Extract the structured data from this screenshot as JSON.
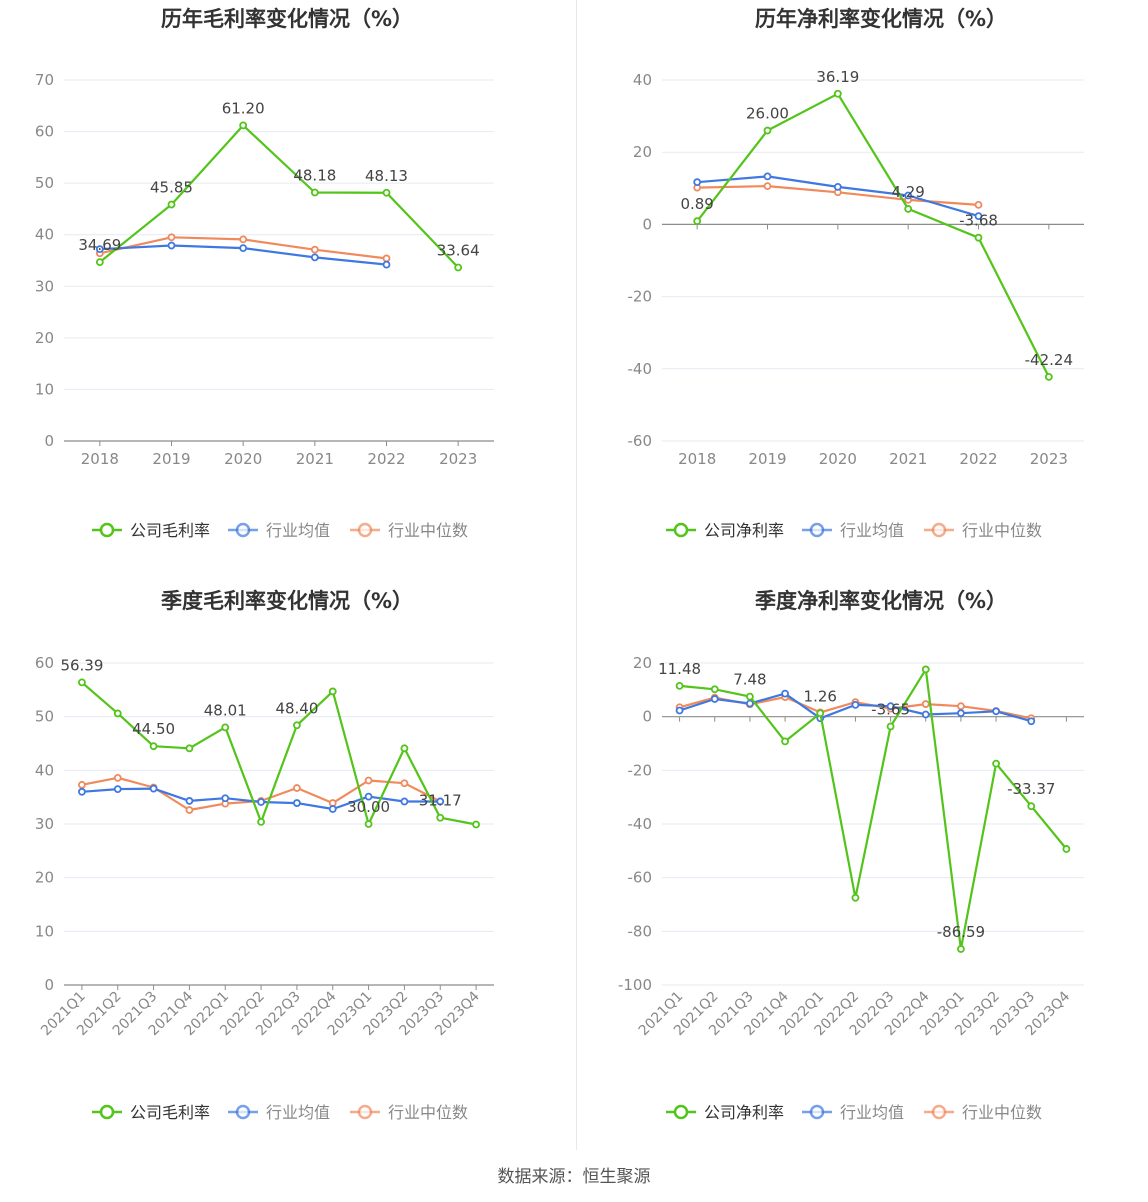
{
  "colors": {
    "company": "#52c41a",
    "industry_avg": "#3e78e0",
    "industry_median": "#f08a5d",
    "grid": "#e6e9f2",
    "axis": "#8c8c8c",
    "tick_text": "#888888",
    "label_text": "#444444",
    "title_text": "#333333"
  },
  "source": "数据来源：恒生聚源",
  "chart_data": [
    {
      "type": "line",
      "title": "历年毛利率变化情况（%）",
      "categories": [
        "2018",
        "2019",
        "2020",
        "2021",
        "2022",
        "2023"
      ],
      "ylim": [
        0,
        70
      ],
      "yticks": [
        0,
        10,
        20,
        30,
        40,
        50,
        60,
        70
      ],
      "grid": true,
      "legend_position": "bottom",
      "series": [
        {
          "name": "公司毛利率",
          "key": "company",
          "values": [
            34.69,
            45.85,
            61.2,
            48.18,
            48.13,
            33.64
          ],
          "labels": [
            "34.69",
            "45.85",
            "61.20",
            "48.18",
            "48.13",
            "33.64"
          ]
        },
        {
          "name": "行业均值",
          "key": "industry_avg",
          "values": [
            37.2,
            37.9,
            37.4,
            35.6,
            34.2,
            null
          ]
        },
        {
          "name": "行业中位数",
          "key": "industry_median",
          "values": [
            36.4,
            39.5,
            39.1,
            37.1,
            35.4,
            null
          ]
        }
      ]
    },
    {
      "type": "line",
      "title": "历年净利率变化情况（%）",
      "categories": [
        "2018",
        "2019",
        "2020",
        "2021",
        "2022",
        "2023"
      ],
      "ylim": [
        -60,
        40
      ],
      "yticks": [
        -60,
        -40,
        -20,
        0,
        20,
        40
      ],
      "grid": true,
      "legend_position": "bottom",
      "series": [
        {
          "name": "公司净利率",
          "key": "company",
          "values": [
            0.89,
            26.0,
            36.19,
            4.29,
            -3.68,
            -42.24
          ],
          "labels": [
            "0.89",
            "26.00",
            "36.19",
            "4.29",
            "-3.68",
            "-42.24"
          ]
        },
        {
          "name": "行业均值",
          "key": "industry_avg",
          "values": [
            11.7,
            13.3,
            10.4,
            8.0,
            2.3,
            null
          ]
        },
        {
          "name": "行业中位数",
          "key": "industry_median",
          "values": [
            10.2,
            10.6,
            8.9,
            6.8,
            5.4,
            null
          ]
        }
      ]
    },
    {
      "type": "line",
      "title": "季度毛利率变化情况（%）",
      "categories": [
        "2021Q1",
        "2021Q2",
        "2021Q3",
        "2021Q4",
        "2022Q1",
        "2022Q2",
        "2022Q3",
        "2022Q4",
        "2023Q1",
        "2023Q2",
        "2023Q3",
        "2023Q4"
      ],
      "ylim": [
        0,
        60
      ],
      "yticks": [
        0,
        10,
        20,
        30,
        40,
        50,
        60
      ],
      "grid": true,
      "legend_position": "bottom",
      "series": [
        {
          "name": "公司毛利率",
          "key": "company",
          "values": [
            56.39,
            50.6,
            44.5,
            44.1,
            48.01,
            30.4,
            48.4,
            54.7,
            30.0,
            44.1,
            31.17,
            29.9
          ],
          "labels": [
            "56.39",
            "",
            "44.50",
            "",
            "48.01",
            "",
            "48.40",
            "",
            "30.00",
            "",
            "31.17",
            ""
          ]
        },
        {
          "name": "行业均值",
          "key": "industry_avg",
          "values": [
            36.0,
            36.5,
            36.6,
            34.3,
            34.8,
            34.1,
            33.9,
            32.8,
            35.1,
            34.2,
            34.2,
            null
          ]
        },
        {
          "name": "行业中位数",
          "key": "industry_median",
          "values": [
            37.3,
            38.6,
            36.8,
            32.6,
            33.8,
            34.3,
            36.7,
            33.9,
            38.1,
            37.6,
            34.2,
            null
          ]
        }
      ]
    },
    {
      "type": "line",
      "title": "季度净利率变化情况（%）",
      "categories": [
        "2021Q1",
        "2021Q2",
        "2021Q3",
        "2021Q4",
        "2022Q1",
        "2022Q2",
        "2022Q3",
        "2022Q4",
        "2023Q1",
        "2023Q2",
        "2023Q3",
        "2023Q4"
      ],
      "ylim": [
        -100,
        20
      ],
      "yticks": [
        -100,
        -80,
        -60,
        -40,
        -20,
        0,
        20
      ],
      "grid": true,
      "legend_position": "bottom",
      "series": [
        {
          "name": "公司净利率",
          "key": "company",
          "values": [
            11.48,
            10.2,
            7.48,
            -9.2,
            1.26,
            -67.5,
            -3.65,
            17.6,
            -86.59,
            -17.5,
            -33.37,
            -49.3
          ],
          "labels": [
            "11.48",
            "",
            "7.48",
            "",
            "1.26",
            "",
            "-3.65",
            "",
            "-86.59",
            "",
            "-33.37",
            ""
          ]
        },
        {
          "name": "行业均值",
          "key": "industry_avg",
          "values": [
            2.3,
            6.6,
            4.9,
            8.6,
            -0.6,
            4.4,
            3.9,
            0.8,
            1.3,
            2.0,
            -1.7,
            null
          ]
        },
        {
          "name": "行业中位数",
          "key": "industry_median",
          "values": [
            3.5,
            7.1,
            4.6,
            7.3,
            1.6,
            5.4,
            3.0,
            4.7,
            3.9,
            2.1,
            -0.6,
            null
          ]
        }
      ]
    }
  ]
}
